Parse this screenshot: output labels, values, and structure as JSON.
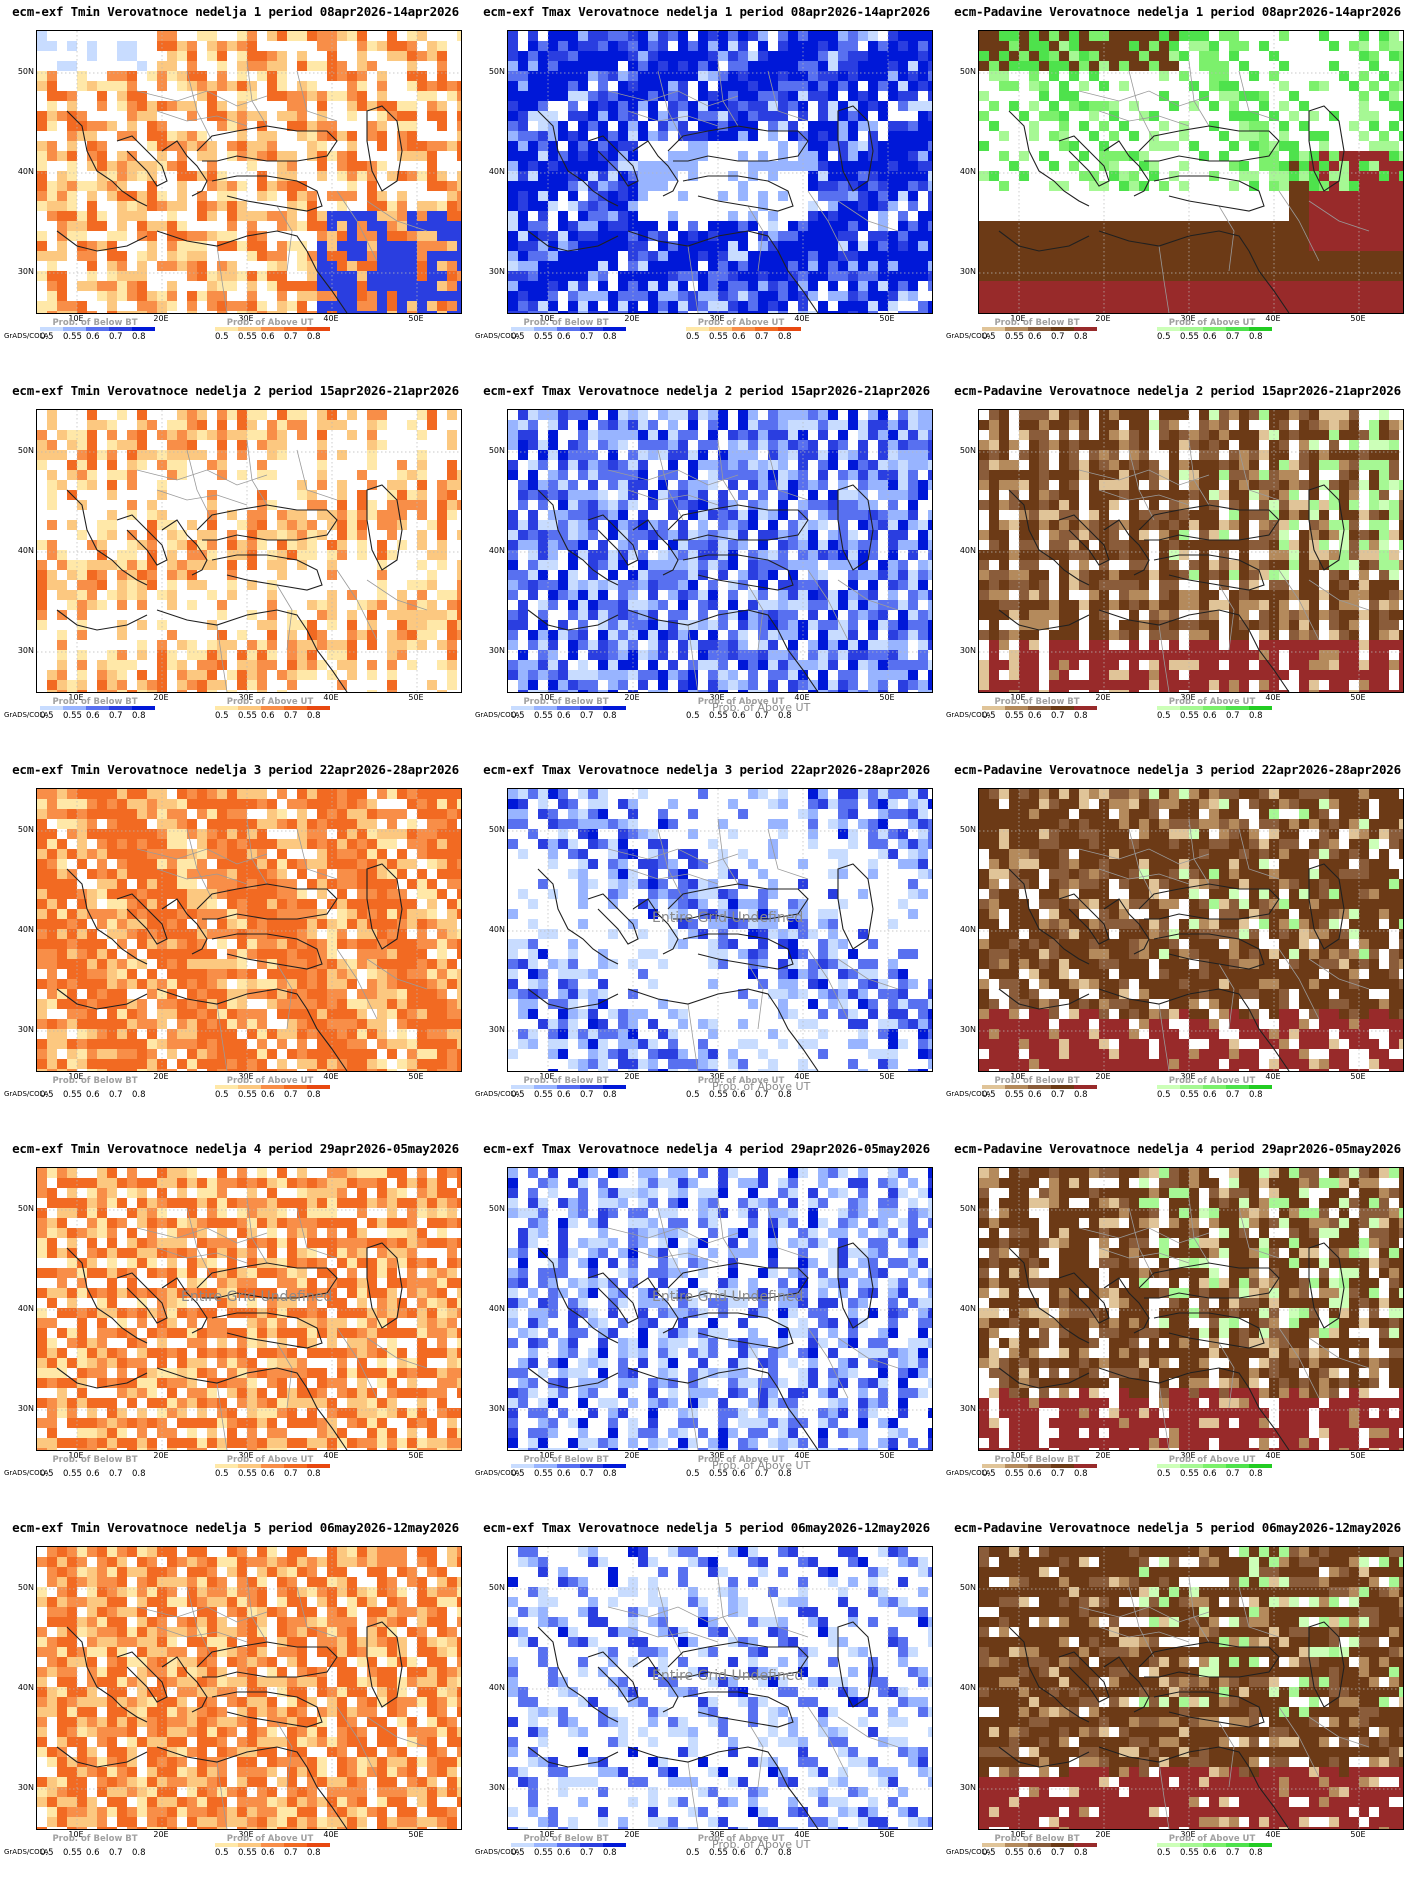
{
  "credit": "GrADS/COLA",
  "axes": {
    "ytick_labels": [
      "50N",
      "40N",
      "30N"
    ],
    "xtick_labels": [
      "10E",
      "20E",
      "30E",
      "40E",
      "50E"
    ]
  },
  "legends": {
    "below_bt": "Prob. of Below BT",
    "above_ut": "Prob. of Above UT",
    "ticks": [
      "0.5",
      "0.55",
      "0.6",
      "0.7",
      "0.8"
    ]
  },
  "overlay_texts": {
    "undefined": "Entire Grid Undefined",
    "above_ut_missing": "Prob. of Above UT"
  },
  "colors": {
    "tmin_warm": [
      "#ffe8a8",
      "#fcc880",
      "#f88e48",
      "#f26a22",
      "#e84810"
    ],
    "tmax_cold": [
      "#c8dcff",
      "#98b4ff",
      "#5870f0",
      "#2a3ee0",
      "#0018d8"
    ],
    "precip_dry": [
      "#e0c498",
      "#b48a5c",
      "#8a5c3a",
      "#6c3a16",
      "#982a2a"
    ],
    "precip_wet": [
      "#ccffb8",
      "#a6f894",
      "#7cf06c",
      "#4ee24c",
      "#22cc22"
    ]
  },
  "panels": [
    {
      "title": "ecm-exf Tmin Verovatnoce nedelja 1 period 08apr2026-14apr2026",
      "variable": "tmin",
      "week": 1,
      "period": "08apr2026-14apr2026"
    },
    {
      "title": "ecm-exf Tmax Verovatnoce nedelja 1 period 08apr2026-14apr2026",
      "variable": "tmax",
      "week": 1,
      "period": "08apr2026-14apr2026"
    },
    {
      "title": "ecm-Padavine Verovatnoce nedelja 1 period 08apr2026-14apr2026",
      "variable": "precip",
      "week": 1,
      "period": "08apr2026-14apr2026"
    },
    {
      "title": "ecm-exf Tmin Verovatnoce nedelja 2 period 15apr2026-21apr2026",
      "variable": "tmin",
      "week": 2,
      "period": "15apr2026-21apr2026"
    },
    {
      "title": "ecm-exf Tmax Verovatnoce nedelja 2 period 15apr2026-21apr2026",
      "variable": "tmax",
      "week": 2,
      "period": "15apr2026-21apr2026"
    },
    {
      "title": "ecm-Padavine Verovatnoce nedelja 2 period 15apr2026-21apr2026",
      "variable": "precip",
      "week": 2,
      "period": "15apr2026-21apr2026"
    },
    {
      "title": "ecm-exf Tmin Verovatnoce nedelja 3 period 22apr2026-28apr2026",
      "variable": "tmin",
      "week": 3,
      "period": "22apr2026-28apr2026"
    },
    {
      "title": "ecm-exf Tmax Verovatnoce nedelja 3 period 22apr2026-28apr2026",
      "variable": "tmax",
      "week": 3,
      "period": "22apr2026-28apr2026"
    },
    {
      "title": "ecm-Padavine Verovatnoce nedelja 3 period 22apr2026-28apr2026",
      "variable": "precip",
      "week": 3,
      "period": "22apr2026-28apr2026"
    },
    {
      "title": "ecm-exf Tmin Verovatnoce nedelja 4 period 29apr2026-05may2026",
      "variable": "tmin",
      "week": 4,
      "period": "29apr2026-05may2026"
    },
    {
      "title": "ecm-exf Tmax Verovatnoce nedelja 4 period 29apr2026-05may2026",
      "variable": "tmax",
      "week": 4,
      "period": "29apr2026-05may2026"
    },
    {
      "title": "ecm-Padavine Verovatnoce nedelja 4 period 29apr2026-05may2026",
      "variable": "precip",
      "week": 4,
      "period": "29apr2026-05may2026"
    },
    {
      "title": "ecm-exf Tmin Verovatnoce nedelja 5 period 06may2026-12may2026",
      "variable": "tmin",
      "week": 5,
      "period": "06may2026-12may2026"
    },
    {
      "title": "ecm-exf Tmax Verovatnoce nedelja 5 period 06may2026-12may2026",
      "variable": "tmax",
      "week": 5,
      "period": "06may2026-12may2026"
    },
    {
      "title": "ecm-Padavine Verovatnoce nedelja 5 period 06may2026-12may2026",
      "variable": "precip",
      "week": 5,
      "period": "06may2026-12may2026"
    }
  ]
}
